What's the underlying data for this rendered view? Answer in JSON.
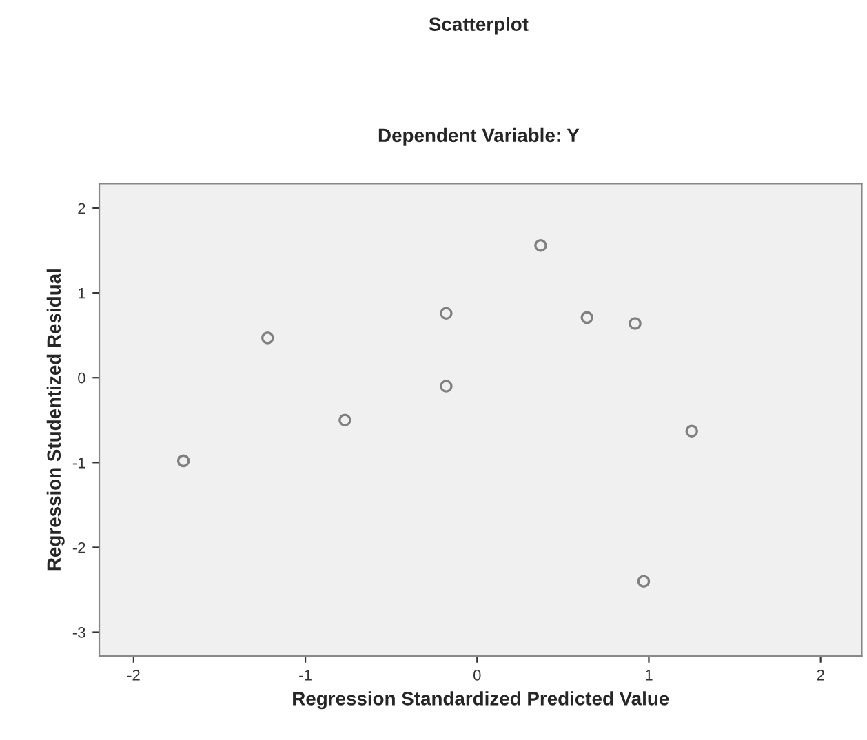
{
  "chart_data": {
    "type": "scatter",
    "title": "Scatterplot",
    "subtitle": "Dependent Variable: Y",
    "xlabel": "Regression Standardized Predicted Value",
    "ylabel": "Regression Studentized Residual",
    "x": [
      -1.71,
      -1.22,
      -0.77,
      -0.18,
      -0.18,
      0.37,
      0.64,
      0.92,
      1.25,
      0.97
    ],
    "series": [
      {
        "color": "#808080",
        "values": [
          -0.98,
          0.47,
          -0.5,
          0.76,
          -0.1,
          1.56,
          0.71,
          0.64,
          -0.63,
          -2.4
        ]
      }
    ],
    "xlim": [
      -2.2,
      2.24
    ],
    "ylim": [
      -3.28,
      2.29
    ],
    "xticks": [
      -2,
      -1,
      0,
      1,
      2
    ],
    "yticks": [
      -3,
      -2,
      -1,
      0,
      1,
      2
    ],
    "marker": "circle",
    "grid": false,
    "legend": false
  }
}
